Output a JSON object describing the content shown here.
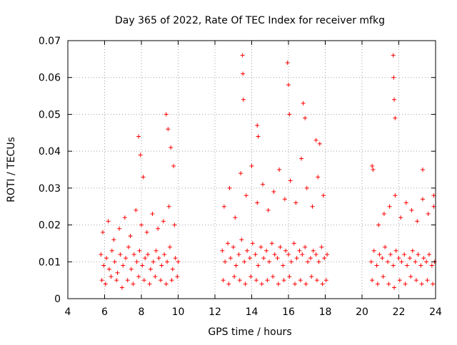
{
  "chart_data": {
    "type": "scatter",
    "title": "Day 365 of 2022, Rate Of TEC Index for receiver mfkg",
    "xlabel": "GPS time / hours",
    "ylabel": "ROTI / TECUs",
    "xlim": [
      4,
      24
    ],
    "ylim": [
      0,
      0.07
    ],
    "x_ticks": [
      "4",
      "6",
      "8",
      "10",
      "12",
      "14",
      "16",
      "18",
      "20",
      "22",
      "24"
    ],
    "y_ticks": [
      "0",
      "0.01",
      "0.02",
      "0.03",
      "0.04",
      "0.05",
      "0.06",
      "0.07"
    ],
    "grid": true,
    "legend": "none",
    "marker": "plus",
    "series_color": "#ff0000",
    "series": [
      {
        "x": [
          5.8,
          5.95,
          6.1,
          6.25,
          6.4,
          6.55,
          6.7,
          6.85,
          7.0,
          7.15,
          7.3,
          7.45,
          7.6,
          7.75,
          7.9,
          8.05,
          8.2,
          8.35,
          8.5,
          8.65,
          8.8,
          8.95,
          9.1,
          9.25,
          9.4,
          9.55,
          9.7,
          9.85,
          10.0,
          5.9,
          6.2,
          6.5,
          6.8,
          7.1,
          7.4,
          7.7,
          8.0,
          8.3,
          8.6,
          8.9,
          9.2,
          9.5,
          9.8,
          5.85,
          6.05,
          6.35,
          6.65,
          6.95,
          7.25,
          7.55,
          7.85,
          8.15,
          8.45,
          8.75,
          9.05,
          9.35,
          9.65,
          9.95,
          7.85,
          7.95,
          8.1,
          9.35,
          9.45,
          9.6,
          9.75,
          12.4,
          12.55,
          12.7,
          12.85,
          13.0,
          13.15,
          13.3,
          13.45,
          13.6,
          13.75,
          13.9,
          14.05,
          14.2,
          14.35,
          14.5,
          14.65,
          14.8,
          14.95,
          15.1,
          15.25,
          15.4,
          15.55,
          15.7,
          15.85,
          16.0,
          16.15,
          16.3,
          16.45,
          16.6,
          16.75,
          16.9,
          17.05,
          17.2,
          17.35,
          17.5,
          17.65,
          17.8,
          17.95,
          18.1,
          12.5,
          12.8,
          13.1,
          13.4,
          13.7,
          14.0,
          14.3,
          14.6,
          14.9,
          15.2,
          15.5,
          15.8,
          16.1,
          16.4,
          16.7,
          17.0,
          17.3,
          17.6,
          17.9,
          12.45,
          12.75,
          13.05,
          13.35,
          13.65,
          13.95,
          14.25,
          14.55,
          14.85,
          15.15,
          15.45,
          15.75,
          16.05,
          16.35,
          16.65,
          16.95,
          17.25,
          17.55,
          17.85,
          18.05,
          13.5,
          13.52,
          13.55,
          14.3,
          14.35,
          15.95,
          16.0,
          16.05,
          16.8,
          16.9,
          17.5,
          17.7,
          20.5,
          20.65,
          20.8,
          20.95,
          21.1,
          21.25,
          21.4,
          21.55,
          21.7,
          21.85,
          22.0,
          22.15,
          22.3,
          22.45,
          22.6,
          22.75,
          22.9,
          23.05,
          23.2,
          23.35,
          23.5,
          23.65,
          23.8,
          23.95,
          20.6,
          20.9,
          21.2,
          21.5,
          21.8,
          22.1,
          22.4,
          22.7,
          23.0,
          23.3,
          23.6,
          23.9,
          20.55,
          20.85,
          21.15,
          21.45,
          21.75,
          22.05,
          22.35,
          22.65,
          22.95,
          23.25,
          23.55,
          23.85,
          20.55,
          21.7,
          21.72,
          21.75,
          21.8,
          23.3,
          23.9
        ],
        "y": [
          0.012,
          0.009,
          0.011,
          0.008,
          0.013,
          0.01,
          0.007,
          0.012,
          0.009,
          0.011,
          0.014,
          0.008,
          0.012,
          0.01,
          0.013,
          0.009,
          0.011,
          0.012,
          0.008,
          0.01,
          0.013,
          0.011,
          0.009,
          0.012,
          0.01,
          0.014,
          0.008,
          0.011,
          0.01,
          0.018,
          0.021,
          0.016,
          0.019,
          0.022,
          0.017,
          0.024,
          0.02,
          0.018,
          0.023,
          0.019,
          0.021,
          0.025,
          0.02,
          0.005,
          0.004,
          0.006,
          0.005,
          0.003,
          0.005,
          0.004,
          0.006,
          0.005,
          0.004,
          0.006,
          0.005,
          0.004,
          0.005,
          0.006,
          0.044,
          0.039,
          0.033,
          0.05,
          0.046,
          0.041,
          0.036,
          0.013,
          0.01,
          0.015,
          0.011,
          0.014,
          0.009,
          0.012,
          0.016,
          0.01,
          0.013,
          0.011,
          0.015,
          0.012,
          0.009,
          0.014,
          0.011,
          0.013,
          0.01,
          0.015,
          0.012,
          0.011,
          0.014,
          0.009,
          0.013,
          0.012,
          0.01,
          0.015,
          0.011,
          0.013,
          0.012,
          0.014,
          0.01,
          0.011,
          0.013,
          0.012,
          0.01,
          0.014,
          0.011,
          0.012,
          0.025,
          0.03,
          0.022,
          0.034,
          0.028,
          0.036,
          0.026,
          0.031,
          0.024,
          0.029,
          0.035,
          0.027,
          0.032,
          0.026,
          0.038,
          0.03,
          0.025,
          0.033,
          0.028,
          0.005,
          0.004,
          0.006,
          0.005,
          0.004,
          0.006,
          0.005,
          0.004,
          0.005,
          0.006,
          0.004,
          0.005,
          0.006,
          0.004,
          0.005,
          0.004,
          0.006,
          0.005,
          0.004,
          0.005,
          0.066,
          0.061,
          0.054,
          0.047,
          0.044,
          0.064,
          0.058,
          0.05,
          0.053,
          0.049,
          0.043,
          0.042,
          0.01,
          0.013,
          0.009,
          0.012,
          0.011,
          0.014,
          0.01,
          0.012,
          0.009,
          0.013,
          0.011,
          0.01,
          0.012,
          0.009,
          0.011,
          0.013,
          0.01,
          0.012,
          0.009,
          0.011,
          0.01,
          0.012,
          0.009,
          0.01,
          0.035,
          0.02,
          0.023,
          0.025,
          0.028,
          0.022,
          0.026,
          0.024,
          0.021,
          0.027,
          0.023,
          0.025,
          0.005,
          0.004,
          0.006,
          0.004,
          0.003,
          0.005,
          0.004,
          0.006,
          0.005,
          0.004,
          0.005,
          0.004,
          0.036,
          0.066,
          0.06,
          0.054,
          0.049,
          0.035,
          0.028
        ]
      }
    ]
  }
}
